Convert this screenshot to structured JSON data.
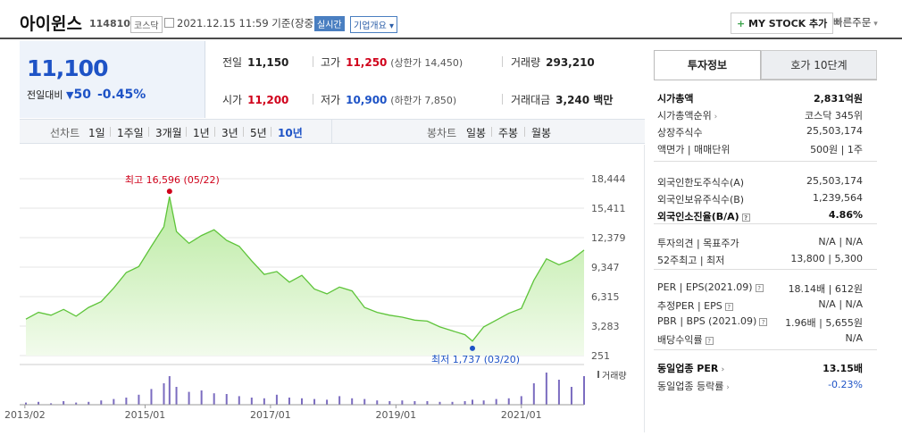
{
  "header": {
    "name": "아이윈스",
    "code": "114810",
    "market": "코스닥",
    "datetime": "2021.12.15 11:59  기준(장중)",
    "realtime": "실시간",
    "corp_info": "기업개요 ▾",
    "mystock": "MY STOCK 추가",
    "quick_order": "빠른주문"
  },
  "price": {
    "current": "11,100",
    "change_label": "전일대비",
    "change_value": "50",
    "change_pct": "-0.45%"
  },
  "summary": {
    "prev_label": "전일",
    "prev": "11,150",
    "high_label": "고가",
    "high": "11,250",
    "high_limit": "(상한가 14,450)",
    "volume_label": "거래량",
    "volume": "293,210",
    "open_label": "시가",
    "open": "11,200",
    "low_label": "저가",
    "low": "10,900",
    "low_limit": "(하한가 7,850)",
    "amount_label": "거래대금",
    "amount": "3,240 백만"
  },
  "tabs": {
    "line_label": "선차트",
    "line_items": [
      "1일",
      "1주일",
      "3개월",
      "1년",
      "3년",
      "5년",
      "10년"
    ],
    "line_selected": "10년",
    "candle_label": "봉차트",
    "candle_items": [
      "일봉",
      "주봉",
      "월봉"
    ]
  },
  "chart_data": {
    "type": "area",
    "yticks": [
      "18,444",
      "15,411",
      "12,379",
      "9,347",
      "6,315",
      "3,283",
      "251"
    ],
    "ylim": [
      251,
      18444
    ],
    "xticks": [
      "2013/02",
      "2015/01",
      "2017/01",
      "2019/01",
      "2021/01"
    ],
    "high_label": "최고 16,596 (05/22)",
    "low_label": "최저 1,737 (03/20)",
    "volume_label": "거래량",
    "x": [
      2013.1,
      2013.3,
      2013.5,
      2013.7,
      2013.9,
      2014.1,
      2014.3,
      2014.5,
      2014.7,
      2014.9,
      2015.1,
      2015.3,
      2015.39,
      2015.5,
      2015.7,
      2015.9,
      2016.1,
      2016.3,
      2016.5,
      2016.7,
      2016.9,
      2017.1,
      2017.3,
      2017.5,
      2017.7,
      2017.9,
      2018.1,
      2018.3,
      2018.5,
      2018.7,
      2018.9,
      2019.1,
      2019.3,
      2019.5,
      2019.7,
      2019.9,
      2020.1,
      2020.22,
      2020.4,
      2020.6,
      2020.8,
      2021.0,
      2021.2,
      2021.4,
      2021.6,
      2021.8,
      2022.0
    ],
    "y": [
      4000,
      4700,
      4400,
      5000,
      4300,
      5200,
      5800,
      7200,
      8800,
      9400,
      11500,
      13500,
      16596,
      13000,
      11800,
      12600,
      13200,
      12100,
      11500,
      10000,
      8600,
      8900,
      7800,
      8500,
      7100,
      6600,
      7300,
      6900,
      5200,
      4700,
      4400,
      4200,
      3900,
      3800,
      3200,
      2800,
      2400,
      1737,
      3200,
      3900,
      4600,
      5100,
      8000,
      10200,
      9600,
      10100,
      11100
    ],
    "volume": [
      3,
      4,
      2,
      5,
      3,
      4,
      6,
      8,
      10,
      14,
      22,
      30,
      40,
      25,
      18,
      20,
      16,
      15,
      12,
      10,
      9,
      14,
      10,
      9,
      8,
      7,
      12,
      9,
      8,
      6,
      5,
      6,
      5,
      5,
      4,
      4,
      5,
      7,
      6,
      8,
      9,
      12,
      30,
      45,
      35,
      25,
      40
    ]
  },
  "invest": {
    "tab_on": "투자정보",
    "tab_off": "호가 10단계",
    "rows": [
      {
        "l": "시가총액",
        "r": "2,831억원"
      },
      {
        "l": "시가총액순위",
        "r": "코스닥 345위"
      },
      {
        "l": "상장주식수",
        "r": "25,503,174"
      },
      {
        "l": "액면가 | 매매단위",
        "r": "500원 | 1주"
      },
      {
        "l": "외국인한도주식수(A)",
        "r": "25,503,174"
      },
      {
        "l": "외국인보유주식수(B)",
        "r": "1,239,564"
      },
      {
        "l": "외국인소진율(B/A)",
        "r": "4.86%"
      },
      {
        "l": "투자의견 | 목표주가",
        "r": "N/A | N/A"
      },
      {
        "l": "52주최고 | 최저",
        "r": "13,800 | 5,300"
      },
      {
        "l": "PER | EPS(2021.09)",
        "r": "18.14배 | 612원"
      },
      {
        "l": "추정PER | EPS",
        "r": "N/A | N/A"
      },
      {
        "l": "PBR | BPS (2021.09)",
        "r": "1.96배 | 5,655원"
      },
      {
        "l": "배당수익률",
        "r": "N/A"
      },
      {
        "l": "동일업종 PER",
        "r": "13.15배"
      },
      {
        "l": "동일업종 등락률",
        "r": "-0.23%"
      }
    ]
  }
}
